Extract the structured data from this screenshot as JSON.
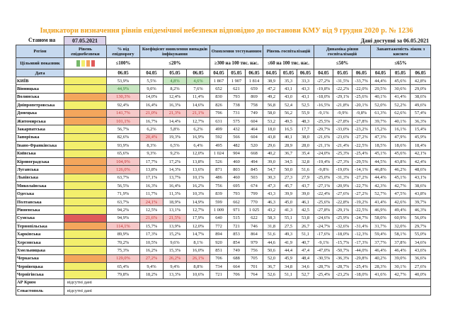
{
  "title": "Індикатори визначення рівнів епідемічної небезпеки відповідно до постанови КМУ від 9 грудня 2020 р. № 1236",
  "as_of_label": "Станом на",
  "as_of_date": "07.05.2021",
  "data_available": "Дані доступні за 06.05.2021",
  "colors": {
    "yellow": "#f3ef6c",
    "orange": "#f4a65c",
    "red": "#e05a5a",
    "green": "#76b86a",
    "header": "#c6d9ef",
    "date_box": "#dcd3ea",
    "title": "#eea01e"
  },
  "headers": {
    "region": "Регіон",
    "level": "Рівень епіднебезпеки",
    "pct": "% від епідпорогу",
    "coef": "Коефіцієнт виявлення випадків інфікування",
    "tests": "Охоплення тестуванням",
    "hosp": "Рівень госпіталізацій",
    "dyn": "Динаміка рівня госпіталізацій",
    "beds": "Завантаженість ліжок з киснем"
  },
  "target": {
    "label": "Цільовий показник",
    "level_legend": [
      "green",
      "yellow",
      "orange",
      "red"
    ],
    "pct": "≤100%",
    "coef": "≤20%",
    "tests": "≥300 на 100 тис. нас.",
    "hosp": "≤60 на 100 тис. нас.",
    "dyn": "≤50%",
    "beds": "≤65%"
  },
  "dates": {
    "label": "Дата",
    "values": [
      "06.05",
      "04.05",
      "05.05",
      "06.05",
      "04.05",
      "05.05",
      "06.05",
      "04.05",
      "05.05",
      "06.05",
      "04.05",
      "05.05",
      "06.05",
      "04.05",
      "05.05",
      "06.05"
    ]
  },
  "missing_text": "відсутні дані",
  "rows": [
    {
      "name": "КИЇВ",
      "level": "yellow",
      "values": [
        "53,9%",
        "5,5%",
        "4,8%",
        "4,6%",
        "1 867",
        "1 907",
        "1 814",
        "38,9",
        "35,3",
        "33,3",
        "-27,2%",
        "-31,5%",
        "-33,7%",
        "44,4%",
        "45,6%",
        "42,8%"
      ],
      "hl": {
        "2": "green",
        "3": "green"
      }
    },
    {
      "name": "Вінницька",
      "level": "yellow",
      "values": [
        "44,9%",
        "9,0%",
        "8,2%",
        "7,6%",
        "652",
        "621",
        "659",
        "47,2",
        "43,1",
        "43,3",
        "-19,8%",
        "-22,2%",
        "-22,0%",
        "29,5%",
        "30,6%",
        "29,0%"
      ],
      "hl": {
        "0": "green"
      }
    },
    {
      "name": "Волинська",
      "level": "orange",
      "values": [
        "130,3%",
        "14,0%",
        "12,4%",
        "11,4%",
        "830",
        "793",
        "869",
        "49,2",
        "43,0",
        "43,1",
        "-18,0%",
        "-29,1%",
        "-25,6%",
        "40,1%",
        "41,4%",
        "38,6%"
      ],
      "hl": {
        "0": "red"
      }
    },
    {
      "name": "Дніпропетровська",
      "level": "yellow",
      "values": [
        "92,4%",
        "16,4%",
        "16,3%",
        "14,6%",
        "826",
        "738",
        "758",
        "56,8",
        "52,4",
        "52,5",
        "-16,5%",
        "-21,8%",
        "-20,1%",
        "52,0%",
        "52,2%",
        "49,6%"
      ],
      "hl": {}
    },
    {
      "name": "Донецька",
      "level": "orange",
      "values": [
        "141,7%",
        "21,0%",
        "21,3%",
        "21,1%",
        "796",
        "731",
        "749",
        "58,0",
        "56,2",
        "55,9",
        "-9,1%",
        "-9,9%",
        "-9,8%",
        "61,3%",
        "62,6%",
        "57,4%"
      ],
      "hl": {
        "0": "red",
        "1": "red",
        "2": "red",
        "3": "red"
      }
    },
    {
      "name": "Житомирська",
      "level": "orange",
      "values": [
        "101,1%",
        "16,7%",
        "14,4%",
        "12,7%",
        "631",
        "575",
        "604",
        "53,2",
        "49,5",
        "48,3",
        "-25,5%",
        "-27,8%",
        "-27,8%",
        "39,7%",
        "40,1%",
        "36,3%"
      ],
      "hl": {
        "0": "red"
      }
    },
    {
      "name": "Закарпатська",
      "level": "yellow",
      "values": [
        "56,7%",
        "6,2%",
        "5,8%",
        "6,2%",
        "499",
        "432",
        "464",
        "18,0",
        "16,5",
        "17,7",
        "-29,7%",
        "-33,0%",
        "-23,2%",
        "15,2%",
        "16,1%",
        "15,4%"
      ],
      "hl": {}
    },
    {
      "name": "Запорізька",
      "level": "yellow",
      "values": [
        "82,6%",
        "20,4%",
        "19,3%",
        "16,9%",
        "592",
        "566",
        "604",
        "43,8",
        "40,1",
        "38,0",
        "-21,6%",
        "-23,6%",
        "-27,2%",
        "47,3%",
        "47,9%",
        "45,9%"
      ],
      "hl": {
        "1": "red"
      }
    },
    {
      "name": "Івано-Франківська",
      "level": "yellow",
      "values": [
        "93,9%",
        "8,3%",
        "6,5%",
        "6,4%",
        "495",
        "482",
        "520",
        "29,6",
        "28,9",
        "28,0",
        "-21,1%",
        "-21,4%",
        "-22,5%",
        "18,5%",
        "18,6%",
        "18,4%"
      ],
      "hl": {}
    },
    {
      "name": "Київська",
      "level": "yellow",
      "values": [
        "65,6%",
        "9,3%",
        "9,2%",
        "12,0%",
        "1 024",
        "904",
        "668",
        "40,2",
        "36,7",
        "35,4",
        "-24,0%",
        "-25,3%",
        "-25,4%",
        "45,1%",
        "45,6%",
        "42,1%"
      ],
      "hl": {}
    },
    {
      "name": "Кіровоградська",
      "level": "orange",
      "values": [
        "104,9%",
        "17,7%",
        "17,2%",
        "13,8%",
        "526",
        "460",
        "494",
        "39,0",
        "34,5",
        "32,8",
        "-19,4%",
        "-27,3%",
        "-29,5%",
        "44,5%",
        "43,8%",
        "42,4%"
      ],
      "hl": {
        "0": "red"
      }
    },
    {
      "name": "Луганська",
      "level": "orange",
      "values": [
        "126,0%",
        "13,8%",
        "14,3%",
        "13,6%",
        "871",
        "803",
        "845",
        "54,7",
        "50,0",
        "51,6",
        "-9,8%",
        "-19,0%",
        "-14,1%",
        "46,8%",
        "46,2%",
        "48,6%"
      ],
      "hl": {
        "0": "red"
      }
    },
    {
      "name": "Львівська",
      "level": "yellow",
      "values": [
        "63,7%",
        "17,1%",
        "13,7%",
        "10,1%",
        "486",
        "460",
        "503",
        "30,3",
        "27,3",
        "27,9",
        "-25,0%",
        "-31,3%",
        "-27,2%",
        "44,4%",
        "45,1%",
        "43,1%"
      ],
      "hl": {}
    },
    {
      "name": "Миколаївська",
      "level": "yellow",
      "values": [
        "56,5%",
        "16,3%",
        "16,4%",
        "16,2%",
        "756",
        "695",
        "674",
        "47,3",
        "45,7",
        "43,7",
        "-27,1%",
        "-20,9%",
        "-22,7%",
        "42,3%",
        "42,7%",
        "38,6%"
      ],
      "hl": {}
    },
    {
      "name": "Одеська",
      "level": "yellow",
      "values": [
        "71,9%",
        "11,7%",
        "11,3%",
        "10,3%",
        "839",
        "793",
        "799",
        "43,3",
        "39,9",
        "39,0",
        "-22,4%",
        "-27,6%",
        "-27,2%",
        "52,7%",
        "47,5%",
        "43,8%"
      ],
      "hl": {}
    },
    {
      "name": "Полтавська",
      "level": "yellow",
      "values": [
        "63,7%",
        "24,1%",
        "18,9%",
        "14,9%",
        "599",
        "662",
        "770",
        "46,3",
        "45,0",
        "46,1",
        "-25,6%",
        "-22,8%",
        "-19,2%",
        "41,4%",
        "42,6%",
        "39,7%"
      ],
      "hl": {
        "1": "red"
      }
    },
    {
      "name": "Рівненська",
      "level": "yellow",
      "values": [
        "94,2%",
        "12,5%",
        "13,1%",
        "12,7%",
        "1 009",
        "971",
        "1 025",
        "43,2",
        "41,3",
        "42,5",
        "-27,8%",
        "-29,1%",
        "-22,5%",
        "46,9%",
        "49,4%",
        "46,3%"
      ],
      "hl": {}
    },
    {
      "name": "Сумська",
      "level": "red",
      "values": [
        "94,9%",
        "21,6%",
        "21,5%",
        "17,9%",
        "640",
        "515",
        "622",
        "58,3",
        "55,1",
        "53,8",
        "-24,6%",
        "-25,9%",
        "-24,7%",
        "58,0%",
        "60,9%",
        "56,0%"
      ],
      "hl": {
        "1": "red",
        "2": "red"
      }
    },
    {
      "name": "Тернопільська",
      "level": "orange",
      "values": [
        "114,1%",
        "15,7%",
        "13,9%",
        "12,0%",
        "772",
        "721",
        "746",
        "31,8",
        "27,5",
        "26,7",
        "-24,7%",
        "-32,6%",
        "-31,4%",
        "31,7%",
        "32,0%",
        "29,7%"
      ],
      "hl": {
        "0": "red"
      }
    },
    {
      "name": "Харківська",
      "level": "yellow",
      "values": [
        "89,9%",
        "17,3%",
        "15,2%",
        "14,7%",
        "894",
        "853",
        "864",
        "51,6",
        "49,3",
        "51,1",
        "-17,6%",
        "-18,0%",
        "-12,3%",
        "59,4%",
        "58,1%",
        "55,0%"
      ],
      "hl": {}
    },
    {
      "name": "Херсонська",
      "level": "yellow",
      "values": [
        "70,2%",
        "10,5%",
        "9,6%",
        "8,1%",
        "920",
        "854",
        "979",
        "44,6",
        "41,9",
        "40,7",
        "-9,1%",
        "-15,7%",
        "-17,3%",
        "37,7%",
        "37,8%",
        "34,6%"
      ],
      "hl": {}
    },
    {
      "name": "Хмельницька",
      "level": "yellow",
      "values": [
        "75,3%",
        "16,2%",
        "15,3%",
        "16,0%",
        "851",
        "749",
        "756",
        "50,6",
        "44,4",
        "47,4",
        "-47,0%",
        "-50,7%",
        "-44,0%",
        "46,4%",
        "46,4%",
        "43,6%"
      ],
      "hl": {}
    },
    {
      "name": "Черкаська",
      "level": "orange",
      "values": [
        "129,0%",
        "27,2%",
        "26,2%",
        "26,1%",
        "706",
        "688",
        "705",
        "52,0",
        "45,9",
        "48,4",
        "-30,5%",
        "-36,3%",
        "-29,8%",
        "40,2%",
        "39,0%",
        "36,6%"
      ],
      "hl": {
        "0": "red",
        "1": "red",
        "2": "red",
        "3": "red"
      }
    },
    {
      "name": "Чернівецька",
      "level": "yellow",
      "values": [
        "65,4%",
        "9,4%",
        "9,4%",
        "8,8%",
        "734",
        "664",
        "701",
        "36,7",
        "34,8",
        "34,6",
        "-28,7%",
        "-28,7%",
        "-25,4%",
        "28,3%",
        "30,1%",
        "27,6%"
      ],
      "hl": {}
    },
    {
      "name": "Чернігівська",
      "level": "yellow",
      "values": [
        "79,8%",
        "18,2%",
        "13,3%",
        "10,6%",
        "721",
        "706",
        "764",
        "52,6",
        "51,1",
        "52,7",
        "-25,4%",
        "-23,2%",
        "-18,0%",
        "41,6%",
        "42,7%",
        "40,0%"
      ],
      "hl": {}
    }
  ],
  "missing_rows": [
    "АР Крим",
    "Севастополь"
  ]
}
